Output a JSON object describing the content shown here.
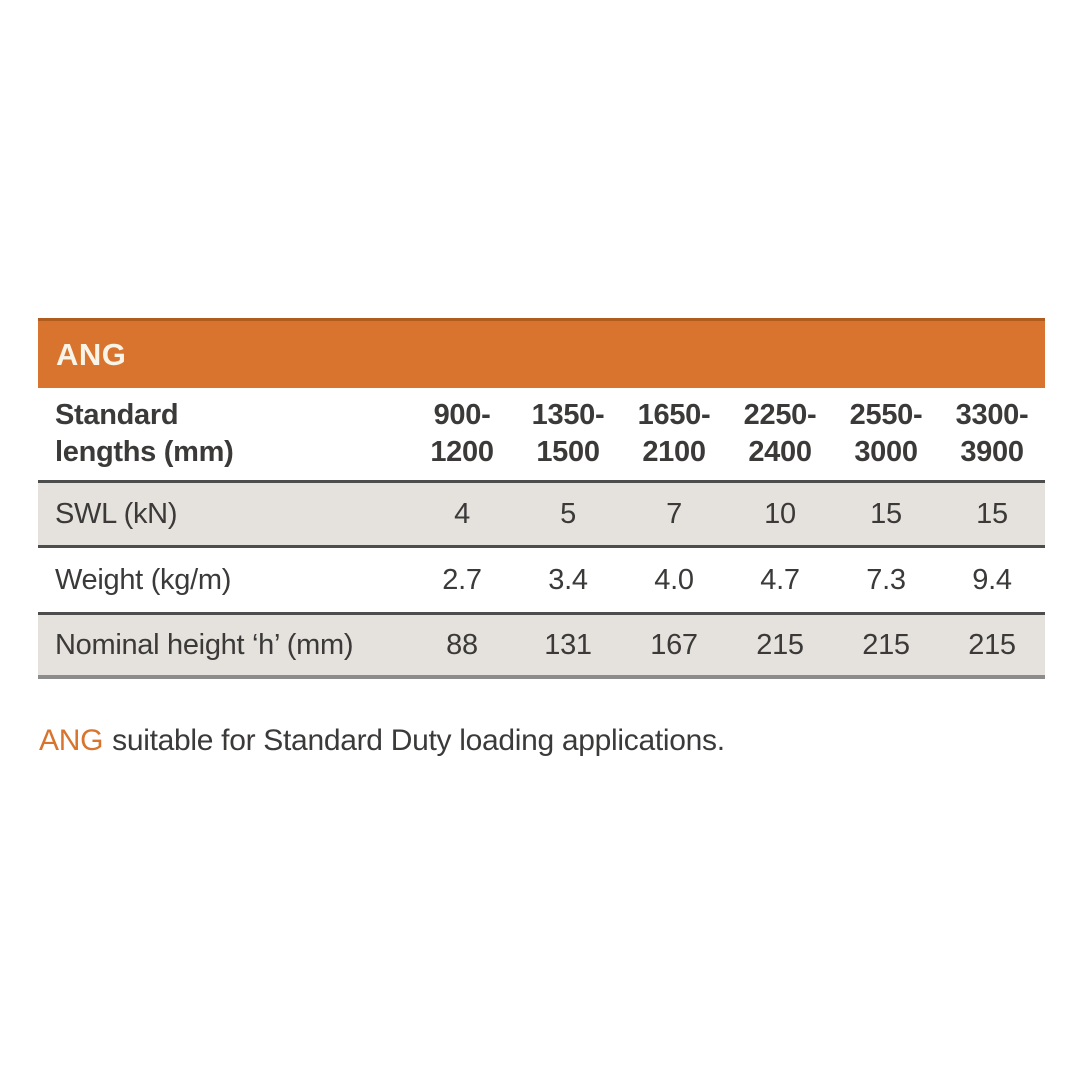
{
  "table": {
    "title": "ANG",
    "size_row": {
      "label_line1": "Standard",
      "label_line2": "lengths (mm)",
      "columns": [
        {
          "line1": "900-",
          "line2": "1200"
        },
        {
          "line1": "1350-",
          "line2": "1500"
        },
        {
          "line1": "1650-",
          "line2": "2100"
        },
        {
          "line1": "2250-",
          "line2": "2400"
        },
        {
          "line1": "2550-",
          "line2": "3000"
        },
        {
          "line1": "3300-",
          "line2": "3900"
        }
      ]
    },
    "rows": [
      {
        "label": "SWL (kN)",
        "values": [
          "4",
          "5",
          "7",
          "10",
          "15",
          "15"
        ]
      },
      {
        "label": "Weight (kg/m)",
        "values": [
          "2.7",
          "3.4",
          "4.0",
          "4.7",
          "7.3",
          "9.4"
        ]
      },
      {
        "label": "Nominal height ‘h’ (mm)",
        "values": [
          "88",
          "131",
          "167",
          "215",
          "215",
          "215"
        ]
      }
    ]
  },
  "footer": {
    "product": "ANG",
    "text": "suitable for Standard Duty loading applications."
  },
  "colors": {
    "accent_orange": "#d8742e",
    "accent_orange_dark": "#b05c1e",
    "row_shade": "#e5e2dd",
    "border_dark": "#4d4d4d",
    "border_bottom_gray": "#8c8c8c",
    "text_dark": "#3b3a39",
    "title_text": "#f8f4e8"
  }
}
